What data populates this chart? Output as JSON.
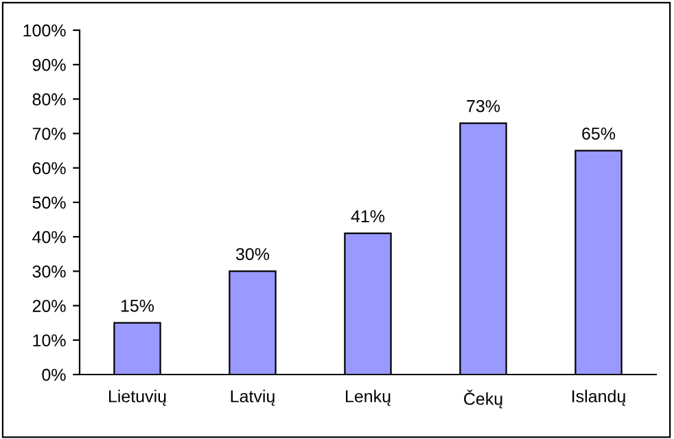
{
  "chart_data": {
    "type": "bar",
    "categories": [
      "Lietuvių",
      "Latvių",
      "Lenkų",
      "Čekų",
      "Islandų"
    ],
    "values": [
      15,
      30,
      41,
      73,
      65
    ],
    "value_labels": [
      "15%",
      "30%",
      "41%",
      "73%",
      "65%"
    ],
    "color": "#9999ff",
    "ylim": [
      0,
      100
    ],
    "yticks": [
      {
        "value": 0,
        "label": "0%"
      },
      {
        "value": 10,
        "label": "10%"
      },
      {
        "value": 20,
        "label": "20%"
      },
      {
        "value": 30,
        "label": "30%"
      },
      {
        "value": 40,
        "label": "40%"
      },
      {
        "value": 50,
        "label": "50%"
      },
      {
        "value": 60,
        "label": "60%"
      },
      {
        "value": 70,
        "label": "70%"
      },
      {
        "value": 80,
        "label": "80%"
      },
      {
        "value": 90,
        "label": "90%"
      },
      {
        "value": 100,
        "label": "100%"
      }
    ],
    "grid": false,
    "legend": false
  }
}
